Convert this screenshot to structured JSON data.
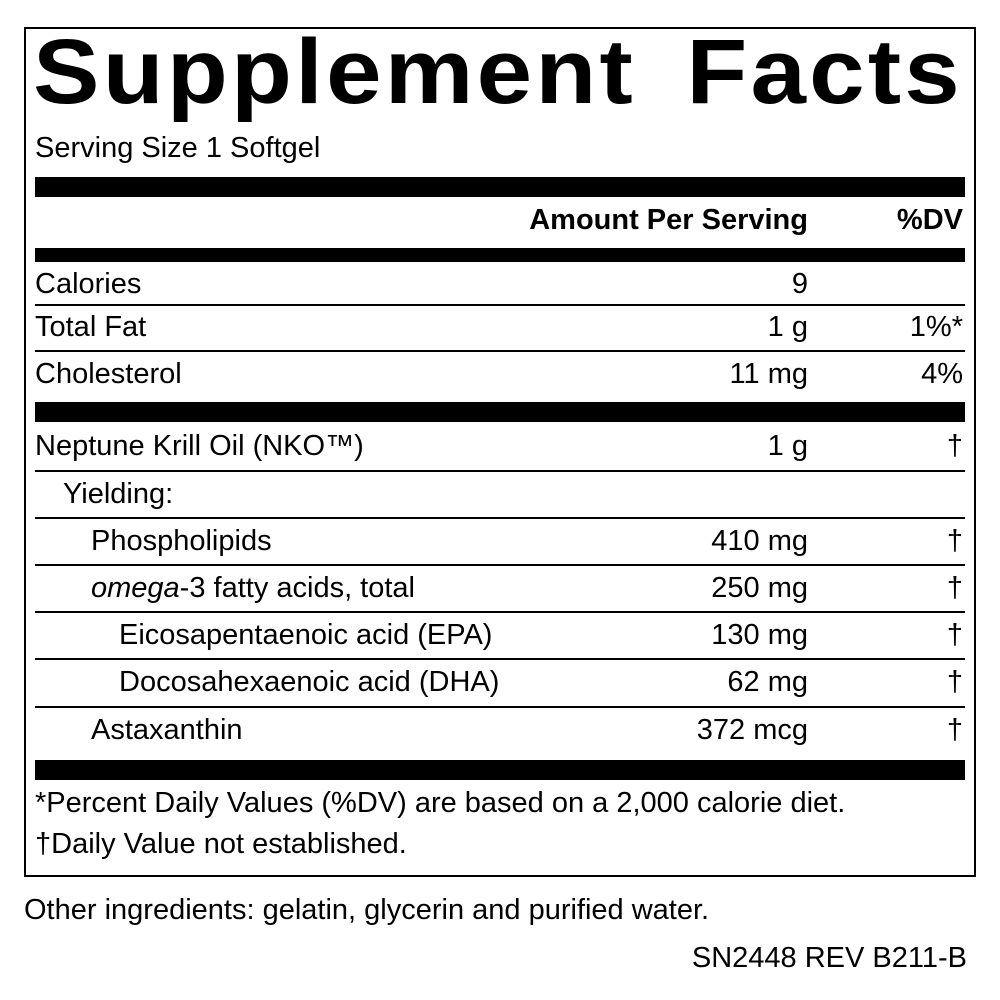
{
  "title": "Supplement Facts",
  "serving_size": "Serving Size 1 Softgel",
  "header": {
    "amount": "Amount Per Serving",
    "dv": "%DV"
  },
  "rows": [
    {
      "name": "Calories",
      "amount": "9",
      "dv": ""
    },
    {
      "name": "Total Fat",
      "amount": "1 g",
      "dv": "1%*"
    },
    {
      "name": "Cholesterol",
      "amount": "11 mg",
      "dv": "4%"
    },
    {
      "name": "Neptune Krill Oil (NKO™)",
      "amount": "1 g",
      "dv": "†"
    },
    {
      "name": "Yielding:",
      "amount": "",
      "dv": ""
    },
    {
      "name": "Phospholipids",
      "amount": "410 mg",
      "dv": "†"
    },
    {
      "name_italic": "omega",
      "name": "-3 fatty acids, total",
      "amount": "250 mg",
      "dv": "†"
    },
    {
      "name": "Eicosapentaenoic acid (EPA)",
      "amount": "130 mg",
      "dv": "†"
    },
    {
      "name": "Docosahexaenoic acid (DHA)",
      "amount": "62 mg",
      "dv": "†"
    },
    {
      "name": "Astaxanthin",
      "amount": "372 mcg",
      "dv": "†"
    }
  ],
  "footnotes": [
    "*Percent Daily Values (%DV) are based on a 2,000 calorie diet.",
    "†Daily Value not established."
  ],
  "other_ingredients": "Other ingredients: gelatin, glycerin and purified water.",
  "code": "SN2448 REV B211-B"
}
